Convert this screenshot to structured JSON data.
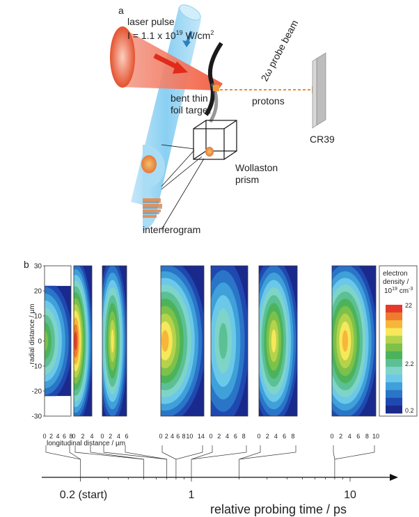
{
  "panel_a": {
    "panel_label": "a",
    "laser_line1": "laser pulse",
    "laser_line2_prefix": "I = 1.1 x 10",
    "laser_line2_exp": "19",
    "laser_line2_unit": " W/cm",
    "laser_line2_unit_exp": "2",
    "probe_beam": "2ω probe beam",
    "target_line1": "bent thin",
    "target_line2": "foil target",
    "protons": "protons",
    "cr39": "CR39",
    "wollaston_line1": "Wollaston",
    "wollaston_line2": "prism",
    "interferogram": "interferogram"
  },
  "panel_b": {
    "panel_label": "b",
    "ylabel": "radial distance / µm",
    "xlabel": "longitudinal distance / µm",
    "time_axis_label": "relative probing time / ps",
    "time_ticks": [
      "0.2 (start)",
      "1",
      "10"
    ],
    "colorbar_title_1": "electron",
    "colorbar_title_2": "density /",
    "colorbar_title_3_prefix": "10",
    "colorbar_title_3_exp": "19",
    "colorbar_title_3_unit": " cm",
    "colorbar_title_3_unit_exp": "-3",
    "colorbar_ticks": [
      "22",
      "2.2",
      "0.2"
    ]
  },
  "chart_data": {
    "type": "heatmap",
    "ylabel": "radial distance / µm",
    "xlabel": "longitudinal distance / µm",
    "ylim": [
      -30,
      30
    ],
    "yticks": [
      30,
      20,
      10,
      0,
      -10,
      -20,
      -30
    ],
    "color_scale": "log",
    "colorbar_range": [
      0.2,
      22
    ],
    "colorbar_ticks": [
      22,
      2.2,
      0.2
    ],
    "colors": [
      "#1a2a8c",
      "#1f49b0",
      "#2a75c8",
      "#3fa0da",
      "#6cc8e8",
      "#7fd4c8",
      "#5cc095",
      "#4cb35b",
      "#7dc14a",
      "#b5d34a",
      "#f5e85a",
      "#f7b63a",
      "#ef7b2e",
      "#e53a2a"
    ],
    "time_axis": {
      "label": "relative probing time / ps",
      "scale": "log",
      "ticks": [
        "0.2 (start)",
        "1",
        "10"
      ]
    },
    "panels": [
      {
        "xticks": [
          "0",
          "2",
          "4",
          "6",
          "8"
        ],
        "x_range": [
          0,
          8
        ],
        "peak_level": 8,
        "y_extent": [
          -22,
          22
        ],
        "peak_x": 0
      },
      {
        "xticks": [
          "0",
          "2",
          "4"
        ],
        "x_range": [
          0,
          4
        ],
        "peak_level": 13,
        "y_extent": [
          -30,
          30
        ],
        "peak_x": 0.4
      },
      {
        "xticks": [
          "0",
          "2",
          "4",
          "6"
        ],
        "x_range": [
          0,
          6
        ],
        "peak_level": 10,
        "y_extent": [
          -30,
          30
        ],
        "peak_x": 2.5
      },
      {
        "xticks": [
          "0",
          "2",
          "4",
          "6",
          "8",
          "10",
          "14"
        ],
        "x_range": [
          0,
          15
        ],
        "peak_level": 11,
        "y_extent": [
          -30,
          30
        ],
        "peak_x": 1.5
      },
      {
        "xticks": [
          "0",
          "2",
          "4",
          "6",
          "8"
        ],
        "x_range": [
          0,
          9
        ],
        "peak_level": 6,
        "y_extent": [
          -30,
          30
        ],
        "peak_x": 3
      },
      {
        "xticks": [
          "0",
          "2",
          "4",
          "6",
          "8"
        ],
        "x_range": [
          0,
          9
        ],
        "peak_level": 10,
        "y_extent": [
          -30,
          30
        ],
        "peak_x": 3.5
      },
      {
        "xticks": [
          "0",
          "2",
          "4",
          "6",
          "8",
          "10"
        ],
        "x_range": [
          0,
          10
        ],
        "peak_level": 11,
        "y_extent": [
          -30,
          30
        ],
        "peak_x": 3
      }
    ]
  }
}
